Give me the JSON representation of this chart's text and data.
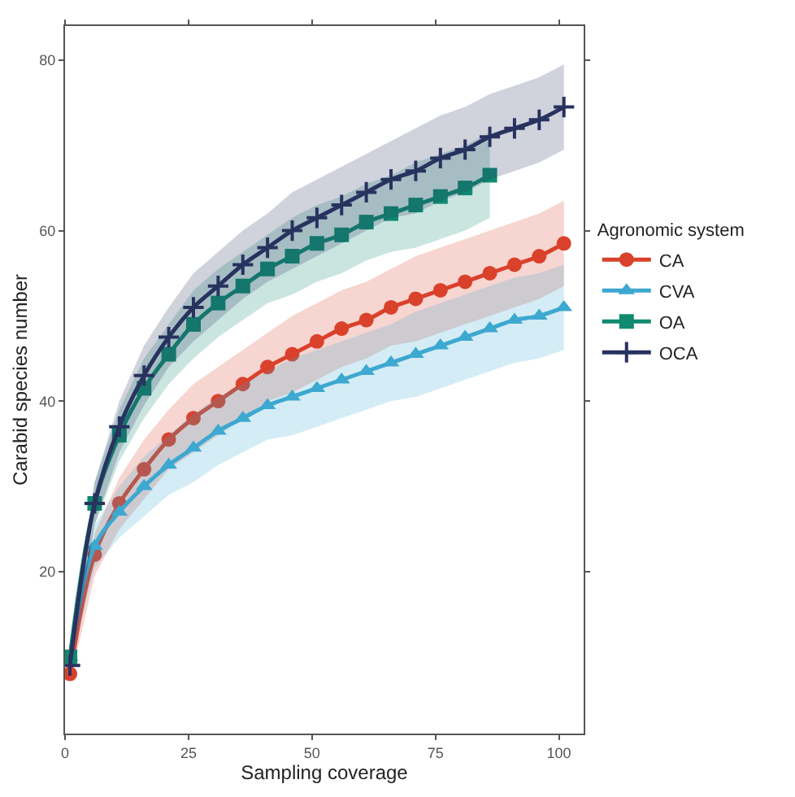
{
  "chart_data": {
    "type": "line",
    "xlabel": "Sampling coverage",
    "ylabel": "Carabid species number",
    "legend_title": "Agronomic system",
    "xlim": [
      0,
      105
    ],
    "xticks": [
      0,
      25,
      50,
      75,
      100
    ],
    "ylim": [
      1,
      84
    ],
    "yticks": [
      20,
      40,
      60,
      80
    ],
    "legend": "right",
    "series": [
      {
        "name": "CA",
        "color": "#d9412b",
        "marker": "circle",
        "x": [
          1,
          6,
          11,
          16,
          21,
          26,
          31,
          36,
          41,
          46,
          51,
          56,
          61,
          66,
          71,
          76,
          81,
          86,
          91,
          96,
          101
        ],
        "values": [
          8,
          22,
          28,
          32,
          35.5,
          38,
          40,
          42,
          44,
          45.5,
          47,
          48.5,
          49.5,
          51,
          52,
          53,
          54,
          55,
          56,
          57,
          58.5
        ],
        "lower": [
          7,
          19.5,
          25,
          28.5,
          32,
          34,
          36,
          38,
          40,
          41,
          42.5,
          44,
          45,
          46.5,
          47,
          48,
          49,
          50,
          51,
          52,
          53.5
        ],
        "upper": [
          9,
          24.5,
          31,
          35.5,
          39,
          42,
          44,
          46,
          48,
          50,
          51.5,
          53,
          54,
          55.5,
          57,
          58,
          59,
          60,
          61,
          62,
          63.5
        ]
      },
      {
        "name": "CVA",
        "color": "#3da8d0",
        "marker": "triangle",
        "x": [
          1,
          6,
          11,
          16,
          21,
          26,
          31,
          36,
          41,
          46,
          51,
          56,
          61,
          66,
          71,
          76,
          81,
          86,
          91,
          96,
          101
        ],
        "values": [
          10,
          23,
          27,
          30,
          32.5,
          34.5,
          36.5,
          38,
          39.5,
          40.5,
          41.5,
          42.5,
          43.5,
          44.5,
          45.5,
          46.5,
          47.5,
          48.5,
          49.5,
          50,
          51
        ],
        "lower": [
          9,
          20.5,
          24,
          26.5,
          29,
          30.5,
          32.5,
          34,
          35.5,
          36,
          37,
          38,
          39,
          40,
          40.5,
          41.5,
          42.5,
          43.5,
          44.5,
          45,
          46
        ],
        "upper": [
          11,
          25.5,
          30,
          33.5,
          36,
          38.5,
          40.5,
          42,
          43.5,
          45,
          46,
          47,
          48,
          49,
          50.5,
          51.5,
          52.5,
          53.5,
          54.5,
          55,
          56
        ]
      },
      {
        "name": "OA",
        "color": "#0f8a70",
        "marker": "square",
        "x": [
          1,
          6,
          11,
          16,
          21,
          26,
          31,
          36,
          41,
          46,
          51,
          56,
          61,
          66,
          71,
          76,
          81,
          86
        ],
        "values": [
          10,
          28,
          36,
          41.5,
          45.5,
          49,
          51.5,
          53.5,
          55.5,
          57,
          58.5,
          59.5,
          61,
          62,
          63,
          64,
          65,
          66.5
        ],
        "lower": [
          9,
          25.5,
          33,
          38,
          42,
          45,
          47.5,
          49.5,
          51.5,
          52.5,
          54,
          55,
          56.5,
          57.5,
          58,
          59,
          60,
          61.5
        ],
        "upper": [
          11,
          30.5,
          39,
          45,
          49,
          53,
          55.5,
          57.5,
          59.5,
          61.5,
          63,
          64,
          65.5,
          66.5,
          68,
          69,
          70,
          71.5
        ]
      },
      {
        "name": "OCA",
        "color": "#28325f",
        "marker": "cross",
        "x": [
          1,
          6,
          11,
          16,
          21,
          26,
          31,
          36,
          41,
          46,
          51,
          56,
          61,
          66,
          71,
          76,
          81,
          86,
          91,
          96,
          101
        ],
        "values": [
          9,
          28,
          37,
          43,
          47.5,
          51,
          53.5,
          56,
          58,
          60,
          61.5,
          63,
          64.5,
          66,
          67,
          68.5,
          69.5,
          71,
          72,
          73,
          74.5
        ],
        "lower": [
          8,
          25.5,
          34,
          39.5,
          44,
          47,
          49.5,
          52,
          54,
          55.5,
          57,
          58.5,
          60,
          61.5,
          62,
          63.5,
          64.5,
          66,
          67,
          68,
          69.5
        ],
        "upper": [
          10,
          30.5,
          40,
          46.5,
          51,
          55,
          57.5,
          60,
          62,
          64.5,
          66,
          67.5,
          69,
          70.5,
          72,
          73.5,
          74.5,
          76,
          77,
          78,
          79.5
        ]
      }
    ]
  }
}
